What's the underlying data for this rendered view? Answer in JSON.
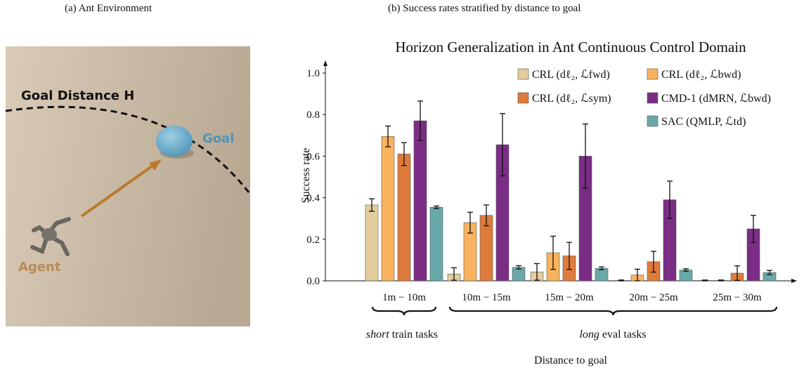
{
  "captions": {
    "a": "(a) Ant Environment",
    "b": "(b) Success rates stratified by distance to goal"
  },
  "environment": {
    "goal_distance_label": "Goal Distance H",
    "goal_label": "Goal",
    "agent_label": "Agent",
    "colors": {
      "goal": "#4f94b8",
      "agent": "#b98a57",
      "arrow": "#b97a2c",
      "background": "#c8b8a3"
    }
  },
  "chart_data": {
    "type": "bar",
    "title": "Horizon Generalization in Ant Continuous Control Domain",
    "xlabel": "Distance to goal",
    "ylabel": "Success rate",
    "ylim": [
      0,
      1.0
    ],
    "yticks": [
      "0.0",
      "0.2",
      "0.4",
      "0.6",
      "0.8",
      "1.0"
    ],
    "categories": [
      "1m − 10m",
      "10m − 15m",
      "15m − 20m",
      "20m − 25m",
      "25m − 30m"
    ],
    "series": [
      {
        "name": "CRL (dℓ₂, ℒfwd)",
        "color": "#e3cd9c",
        "values": [
          0.365,
          0.033,
          0.043,
          0.002,
          0.002
        ],
        "errors": [
          0.03,
          0.03,
          0.04,
          0.002,
          0.002
        ]
      },
      {
        "name": "CRL (dℓ₂, ℒbwd)",
        "color": "#f9b35e",
        "values": [
          0.695,
          0.28,
          0.135,
          0.028,
          0.002
        ],
        "errors": [
          0.05,
          0.05,
          0.08,
          0.028,
          0.002
        ]
      },
      {
        "name": "CRL (dℓ₂, ℒsym)",
        "color": "#df7b3a",
        "values": [
          0.61,
          0.315,
          0.12,
          0.092,
          0.037
        ],
        "errors": [
          0.055,
          0.05,
          0.065,
          0.05,
          0.035
        ]
      },
      {
        "name": "CMD-1 (dMRN, ℒbwd)",
        "color": "#7b2d86",
        "values": [
          0.77,
          0.655,
          0.6,
          0.39,
          0.25
        ],
        "errors": [
          0.095,
          0.15,
          0.155,
          0.09,
          0.065
        ]
      },
      {
        "name": "SAC (QMLP, ℒtd)",
        "color": "#6aa9a9",
        "values": [
          0.354,
          0.065,
          0.06,
          0.052,
          0.04
        ],
        "errors": [
          0.006,
          0.008,
          0.007,
          0.006,
          0.01
        ]
      }
    ],
    "legend_position": "top-right",
    "grid": false,
    "braces": [
      {
        "prefix": "short",
        "suffix": " train tasks"
      },
      {
        "prefix": "long",
        "suffix": " eval tasks"
      }
    ]
  }
}
